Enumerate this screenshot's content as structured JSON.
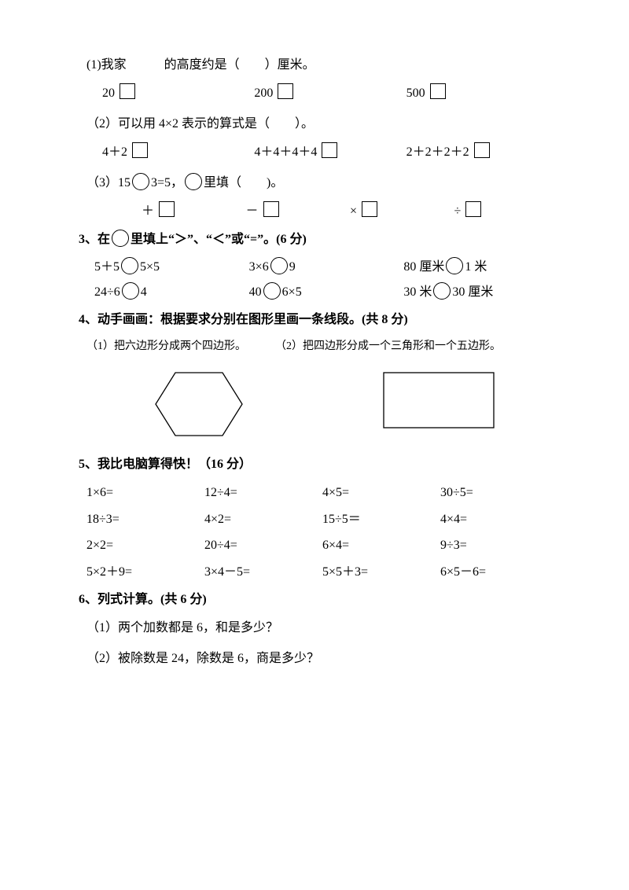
{
  "q1": {
    "stem": "(1)我家　　　的高度约是（　　）厘米。",
    "a": "20",
    "b": "200",
    "c": "500"
  },
  "q1b": {
    "stem": "（2）可以用 4×2 表示的算式是（　　）。",
    "a": "4＋2",
    "b": "4＋4＋4＋4",
    "c": "2＋2＋2＋2"
  },
  "q1c": {
    "stem_a": "（3）15",
    "stem_b": "3=5，",
    "stem_c": "里填（　　)。",
    "a": "＋",
    "b": "－",
    "c": "×",
    "d": "÷"
  },
  "q3": {
    "title_a": "3、在",
    "title_b": "里填上“＞”、“＜”或“=”。(6 分)",
    "r1c1a": "5＋5",
    "r1c1b": "5×5",
    "r1c2a": "3×6",
    "r1c2b": "9",
    "r1c3a": "80 厘米",
    "r1c3b": "1 米",
    "r2c1a": "24÷6",
    "r2c1b": "4",
    "r2c2a": "40",
    "r2c2b": "6×5",
    "r2c3a": "30 米",
    "r2c3b": "30 厘米"
  },
  "q4": {
    "title": "4、动手画画：根据要求分别在图形里画一条线段。(共 8 分)",
    "s1": "（1）把六边形分成两个四边形。",
    "s2": "（2）把四边形分成一个三角形和一个五边形。"
  },
  "q5": {
    "title": "5、我比电脑算得快！（16 分）",
    "rows": [
      [
        "1×6=",
        "12÷4=",
        "4×5=",
        "30÷5="
      ],
      [
        "18÷3=",
        "4×2=",
        "15÷5＝",
        "4×4="
      ],
      [
        "2×2=",
        "20÷4=",
        "6×4=",
        "9÷3="
      ],
      [
        "5×2＋9=",
        "3×4－5=",
        "5×5＋3=",
        "6×5－6="
      ]
    ]
  },
  "q6": {
    "title": "6、列式计算。(共 6 分)",
    "s1": "（1）两个加数都是 6，和是多少？",
    "s2": "（2）被除数是 24，除数是 6，商是多少？"
  }
}
